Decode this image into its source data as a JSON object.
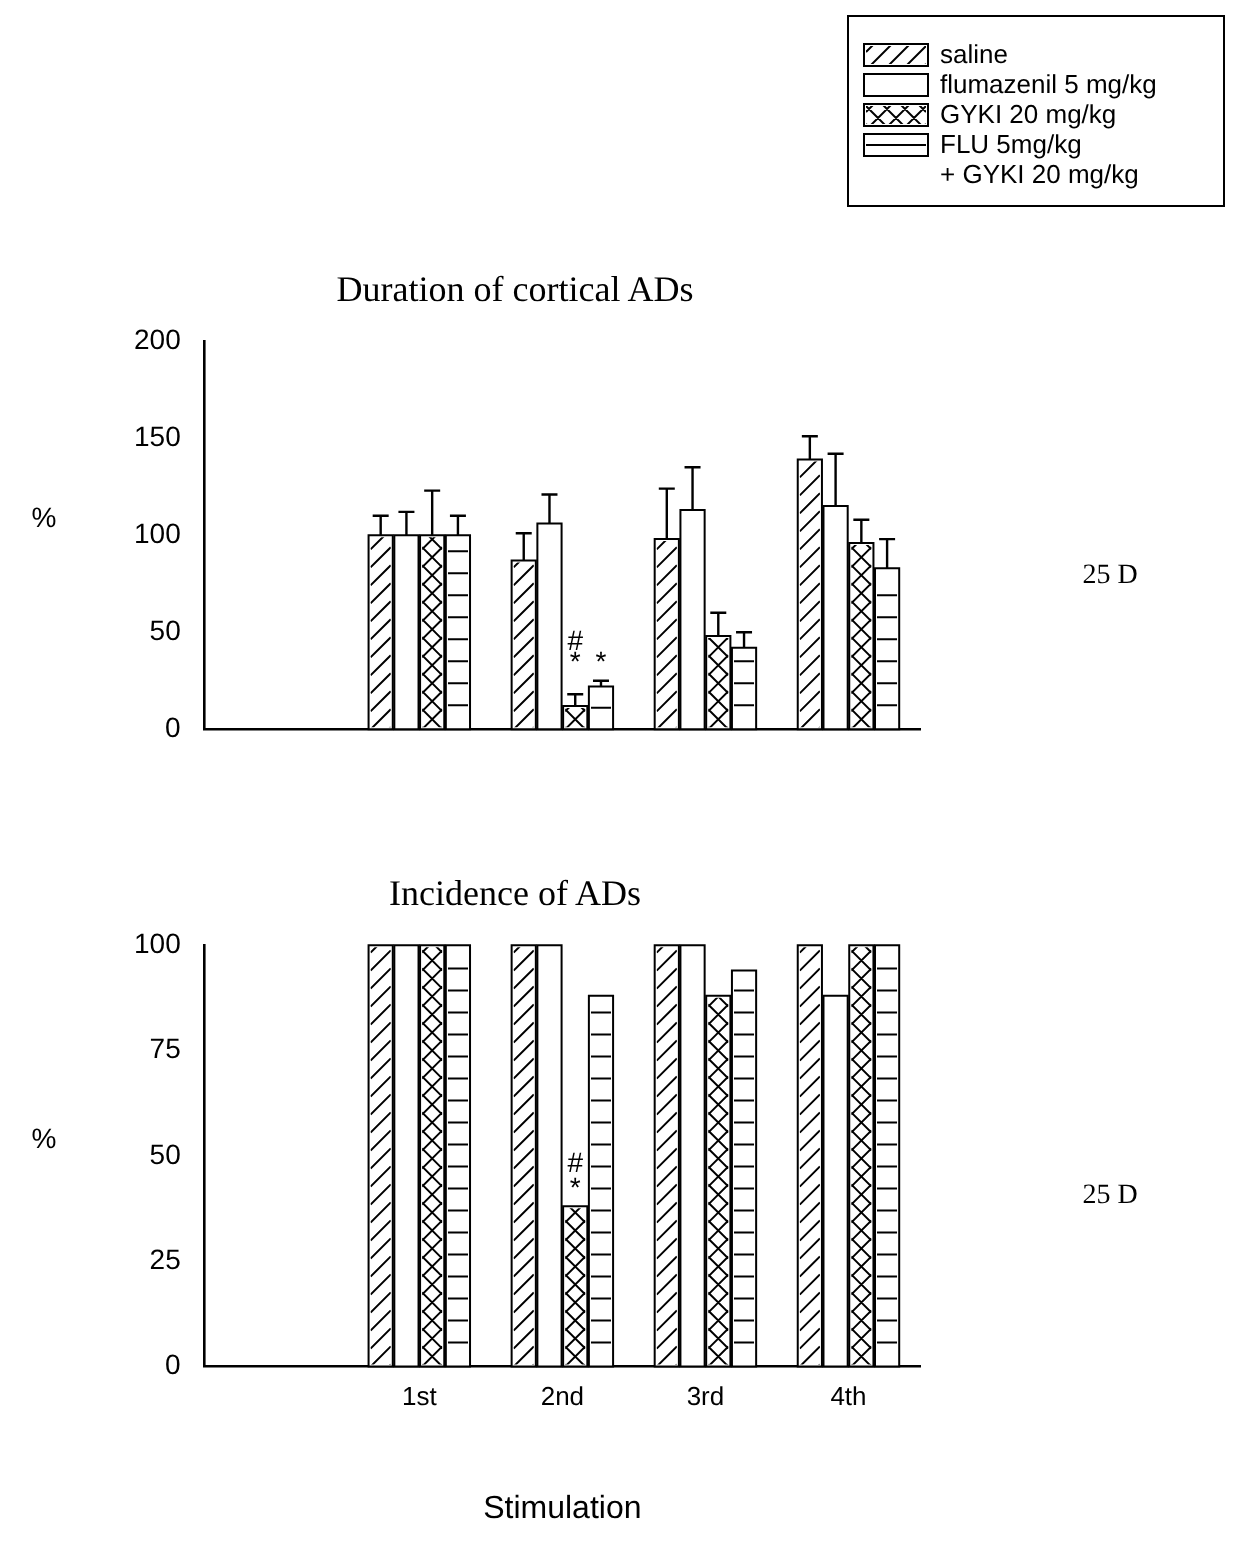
{
  "chart_data": [
    {
      "type": "bar",
      "title": "Duration of cortical ADs",
      "ylabel": "%",
      "categories": [
        null,
        "1st",
        "2nd",
        "3rd",
        "4th"
      ],
      "tick_labels": "y",
      "legend": "top right",
      "ylim": [
        0,
        200
      ],
      "yticks": [
        0,
        50,
        100,
        150,
        200
      ],
      "grid": false,
      "series": [
        {
          "name": "saline",
          "color": "#ffffff",
          "values": [
            null,
            100,
            87,
            98,
            139
          ],
          "errors": [
            null,
            [
              100,
              110
            ],
            [
              87,
              101
            ],
            [
              98,
              124
            ],
            [
              139,
              151
            ]
          ]
        },
        {
          "name": "flumazenil 5 mg/kg",
          "color": "#ffffff",
          "values": [
            null,
            100,
            106,
            113,
            115
          ],
          "errors": [
            null,
            [
              100,
              112
            ],
            [
              106,
              121
            ],
            [
              113,
              135
            ],
            [
              115,
              142
            ]
          ]
        },
        {
          "name": "GYKI 20 mg/kg",
          "color": "#ffffff",
          "values": [
            null,
            100,
            12,
            48,
            96
          ],
          "errors": [
            null,
            [
              100,
              123
            ],
            [
              12,
              18
            ],
            [
              48,
              60
            ],
            [
              96,
              108
            ]
          ]
        },
        {
          "name": "FLU 5mg/kg\n+ GYKI 20 mg/kg",
          "color": "#ffffff",
          "values": [
            null,
            100,
            22,
            42,
            83
          ],
          "errors": [
            null,
            [
              100,
              110
            ],
            [
              22,
              25
            ],
            [
              42,
              50
            ],
            [
              83,
              98
            ]
          ]
        }
      ],
      "annotations": [
        {
          "text": "#",
          "x": "2nd",
          "y": 45
        },
        {
          "text": "*",
          "x": "2nd",
          "y": 34
        },
        {
          "text": "*",
          "x": "2nd",
          "y": 34
        },
        "25 D"
      ]
    },
    {
      "type": "bar",
      "title": "Incidence of ADs",
      "ylabel": "%",
      "xlabel": "Stimulation",
      "categories": [
        null,
        "1st",
        "2nd",
        "3rd",
        "4th"
      ],
      "legend": false,
      "ylim": [
        0,
        100
      ],
      "yticks": [
        0,
        25,
        50,
        75,
        100
      ],
      "grid": false,
      "series": [
        {
          "color": "#ffffff",
          "values": [
            null,
            100,
            100,
            100,
            100
          ]
        },
        {
          "color": "#ffffff",
          "values": [
            null,
            100,
            100,
            100,
            88
          ]
        },
        {
          "color": "#ffffff",
          "values": [
            null,
            100,
            38,
            88,
            100
          ]
        },
        {
          "color": "#ffffff",
          "values": [
            null,
            100,
            88,
            94,
            100
          ]
        }
      ],
      "annotations": [
        {
          "text": "#",
          "x": "2nd",
          "y": 48
        },
        {
          "text": "*",
          "x": "2nd",
          "y": 42
        },
        "25 D"
      ]
    }
  ]
}
